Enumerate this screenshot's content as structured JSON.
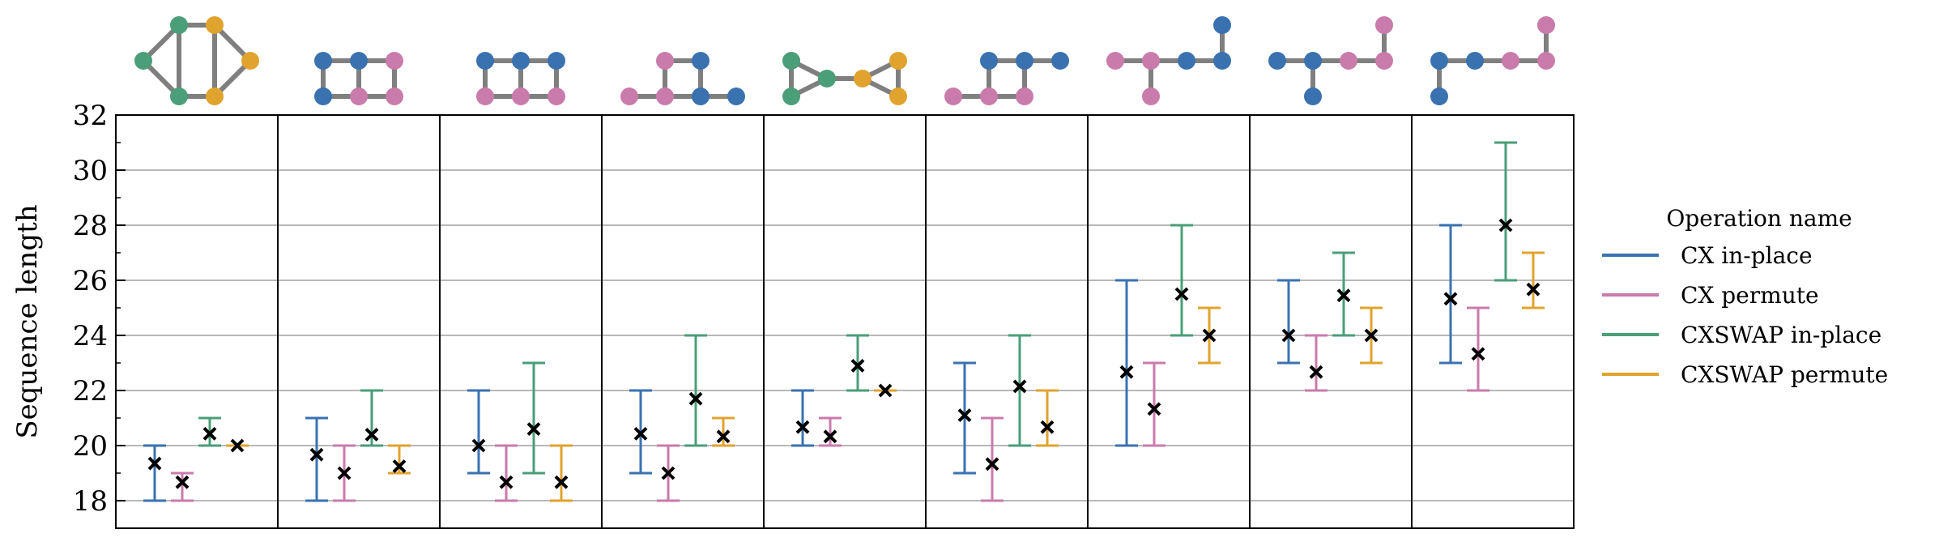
{
  "chart_data": {
    "type": "errorbar",
    "ylabel": "Sequence length",
    "ylim": [
      17,
      32
    ],
    "yticks": [
      18,
      20,
      22,
      24,
      26,
      28,
      30,
      32
    ],
    "grid": true,
    "legend": {
      "title": "Operation name",
      "placement": "right, outside"
    },
    "series": [
      {
        "name": "CX in-place",
        "color": "#3a72b0",
        "mean": [
          19.35,
          19.67,
          20.0,
          20.43,
          20.67,
          21.1,
          22.67,
          24.0,
          25.33
        ],
        "min": [
          18,
          18,
          19,
          19,
          20,
          19,
          20,
          23,
          23
        ],
        "max": [
          20,
          21,
          22,
          22,
          22,
          23,
          26,
          26,
          28
        ]
      },
      {
        "name": "CX permute",
        "color": "#c97bab",
        "mean": [
          18.67,
          19.0,
          18.67,
          19.0,
          20.33,
          19.33,
          21.33,
          22.67,
          23.33
        ],
        "min": [
          18,
          18,
          18,
          18,
          20,
          18,
          20,
          22,
          22
        ],
        "max": [
          19,
          20,
          20,
          20,
          21,
          21,
          23,
          24,
          25
        ]
      },
      {
        "name": "CXSWAP in-place",
        "color": "#4a9e78",
        "mean": [
          20.43,
          20.4,
          20.6,
          21.7,
          22.9,
          22.15,
          25.5,
          25.45,
          28.0
        ],
        "min": [
          20,
          20,
          19,
          20,
          22,
          20,
          24,
          24,
          26
        ],
        "max": [
          21,
          22,
          23,
          24,
          24,
          24,
          28,
          27,
          31
        ]
      },
      {
        "name": "CXSWAP permute",
        "color": "#e0a32e",
        "mean": [
          20.0,
          19.25,
          18.67,
          20.33,
          22.0,
          20.67,
          24.0,
          24.0,
          25.67
        ],
        "min": [
          20,
          19,
          18,
          20,
          22,
          20,
          23,
          23,
          25
        ],
        "max": [
          20,
          20,
          20,
          21,
          22,
          22,
          25,
          25,
          27
        ]
      }
    ],
    "topology_icons": [
      {
        "nodes": [
          [
            0,
            1,
            "green"
          ],
          [
            1,
            0,
            "green"
          ],
          [
            1,
            2,
            "green"
          ],
          [
            2,
            0,
            "orange"
          ],
          [
            2,
            2,
            "orange"
          ],
          [
            3,
            1,
            "orange"
          ]
        ],
        "edges": [
          [
            0,
            1
          ],
          [
            0,
            2
          ],
          [
            1,
            2
          ],
          [
            1,
            3
          ],
          [
            2,
            4
          ],
          [
            3,
            4
          ],
          [
            3,
            5
          ],
          [
            4,
            5
          ]
        ]
      },
      {
        "nodes": [
          [
            0,
            0,
            "blue"
          ],
          [
            1,
            0,
            "blue"
          ],
          [
            2,
            0,
            "pink"
          ],
          [
            0,
            1,
            "blue"
          ],
          [
            1,
            1,
            "pink"
          ],
          [
            2,
            1,
            "pink"
          ]
        ],
        "edges": [
          [
            0,
            1
          ],
          [
            1,
            2
          ],
          [
            3,
            4
          ],
          [
            4,
            5
          ],
          [
            0,
            3
          ],
          [
            1,
            4
          ],
          [
            2,
            5
          ]
        ]
      },
      {
        "nodes": [
          [
            0,
            0,
            "blue"
          ],
          [
            1,
            0,
            "blue"
          ],
          [
            2,
            0,
            "blue"
          ],
          [
            0,
            1,
            "pink"
          ],
          [
            1,
            1,
            "pink"
          ],
          [
            2,
            1,
            "pink"
          ]
        ],
        "edges": [
          [
            0,
            1
          ],
          [
            1,
            2
          ],
          [
            3,
            4
          ],
          [
            4,
            5
          ],
          [
            0,
            3
          ],
          [
            1,
            4
          ],
          [
            2,
            5
          ]
        ]
      },
      {
        "nodes": [
          [
            1,
            0,
            "pink"
          ],
          [
            2,
            0,
            "blue"
          ],
          [
            0,
            1,
            "pink"
          ],
          [
            1,
            1,
            "pink"
          ],
          [
            2,
            1,
            "blue"
          ],
          [
            3,
            1,
            "blue"
          ]
        ],
        "edges": [
          [
            0,
            1
          ],
          [
            2,
            3
          ],
          [
            3,
            4
          ],
          [
            4,
            5
          ],
          [
            0,
            3
          ],
          [
            1,
            4
          ]
        ]
      },
      {
        "nodes": [
          [
            0,
            0,
            "green"
          ],
          [
            0,
            1,
            "green"
          ],
          [
            1,
            0.5,
            "green"
          ],
          [
            2,
            0.5,
            "orange"
          ],
          [
            3,
            0,
            "orange"
          ],
          [
            3,
            1,
            "orange"
          ]
        ],
        "edges": [
          [
            0,
            1
          ],
          [
            0,
            2
          ],
          [
            1,
            2
          ],
          [
            2,
            3
          ],
          [
            3,
            4
          ],
          [
            3,
            5
          ],
          [
            4,
            5
          ]
        ]
      },
      {
        "nodes": [
          [
            1,
            0,
            "blue"
          ],
          [
            2,
            0,
            "blue"
          ],
          [
            3,
            0,
            "blue"
          ],
          [
            0,
            1,
            "pink"
          ],
          [
            1,
            1,
            "pink"
          ],
          [
            2,
            1,
            "pink"
          ]
        ],
        "edges": [
          [
            0,
            1
          ],
          [
            1,
            2
          ],
          [
            3,
            4
          ],
          [
            4,
            5
          ],
          [
            0,
            4
          ],
          [
            1,
            5
          ]
        ]
      },
      {
        "nodes": [
          [
            3,
            -1,
            "blue"
          ],
          [
            0,
            0,
            "pink"
          ],
          [
            1,
            0,
            "pink"
          ],
          [
            2,
            0,
            "blue"
          ],
          [
            3,
            0,
            "blue"
          ],
          [
            1,
            1,
            "pink"
          ]
        ],
        "edges": [
          [
            0,
            4
          ],
          [
            1,
            2
          ],
          [
            2,
            3
          ],
          [
            3,
            4
          ],
          [
            2,
            5
          ]
        ]
      },
      {
        "nodes": [
          [
            3,
            -1,
            "pink"
          ],
          [
            0,
            0,
            "blue"
          ],
          [
            1,
            0,
            "blue"
          ],
          [
            2,
            0,
            "pink"
          ],
          [
            3,
            0,
            "pink"
          ],
          [
            1,
            1,
            "blue"
          ]
        ],
        "edges": [
          [
            0,
            4
          ],
          [
            1,
            2
          ],
          [
            2,
            3
          ],
          [
            3,
            4
          ],
          [
            2,
            5
          ]
        ]
      },
      {
        "nodes": [
          [
            3,
            -1,
            "pink"
          ],
          [
            0,
            0,
            "blue"
          ],
          [
            1,
            0,
            "blue"
          ],
          [
            2,
            0,
            "pink"
          ],
          [
            3,
            0,
            "pink"
          ],
          [
            0,
            1,
            "blue"
          ]
        ],
        "edges": [
          [
            0,
            4
          ],
          [
            1,
            2
          ],
          [
            2,
            3
          ],
          [
            3,
            4
          ],
          [
            1,
            5
          ]
        ]
      }
    ],
    "node_colors": {
      "blue": "#3a72b0",
      "pink": "#c97bab",
      "green": "#4a9e78",
      "orange": "#e0a32e"
    }
  }
}
